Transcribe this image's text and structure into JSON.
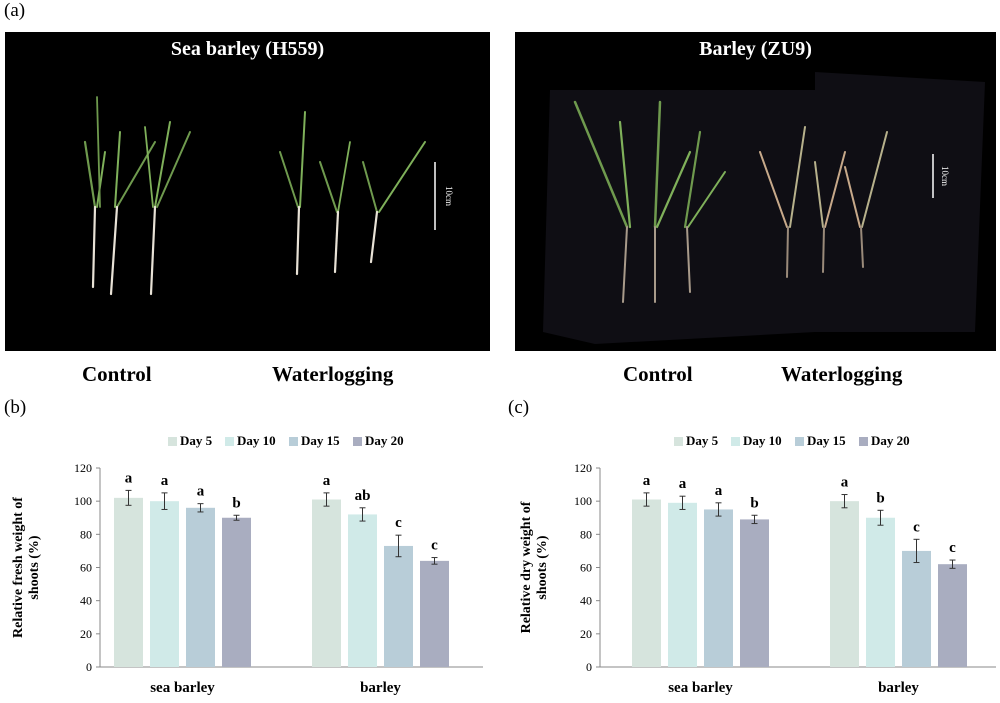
{
  "figure": {
    "panel_a": {
      "letter": "(a)",
      "photos": [
        {
          "title": "Sea barley (H559)",
          "scale": "10cm",
          "conditions": [
            "Control",
            "Waterlogging"
          ]
        },
        {
          "title": "Barley (ZU9)",
          "scale": "10cm",
          "conditions": [
            "Control",
            "Waterlogging"
          ]
        }
      ]
    }
  },
  "colors": {
    "Day 5": "#d6e4dd",
    "Day 10": "#d0eae8",
    "Day 15": "#b8cdd8",
    "Day 20": "#a9adc0"
  },
  "chart_data": [
    {
      "panel": "(b)",
      "type": "bar",
      "ylabel": "Relative fresh weight of shoots (%)",
      "categories": [
        "sea barley",
        "barley"
      ],
      "ylim": [
        0,
        120
      ],
      "yticks": [
        0,
        20,
        40,
        60,
        80,
        100,
        120
      ],
      "legend": "top",
      "series": [
        {
          "name": "Day 5",
          "values": [
            102,
            101
          ],
          "errors": [
            4.5,
            4
          ],
          "letters": [
            "a",
            "a"
          ]
        },
        {
          "name": "Day 10",
          "values": [
            100,
            92
          ],
          "errors": [
            5,
            4
          ],
          "letters": [
            "a",
            "ab"
          ]
        },
        {
          "name": "Day 15",
          "values": [
            96,
            73
          ],
          "errors": [
            2.5,
            6.5
          ],
          "letters": [
            "a",
            "c"
          ]
        },
        {
          "name": "Day 20",
          "values": [
            90,
            64
          ],
          "errors": [
            1.5,
            2
          ],
          "letters": [
            "b",
            "c"
          ]
        }
      ]
    },
    {
      "panel": "(c)",
      "type": "bar",
      "ylabel": "Relative dry weight of shoots (%)",
      "categories": [
        "sea barley",
        "barley"
      ],
      "ylim": [
        0,
        120
      ],
      "yticks": [
        0,
        20,
        40,
        60,
        80,
        100,
        120
      ],
      "legend": "top",
      "series": [
        {
          "name": "Day 5",
          "values": [
            101,
            100
          ],
          "errors": [
            4,
            4
          ],
          "letters": [
            "a",
            "a"
          ]
        },
        {
          "name": "Day 10",
          "values": [
            99,
            90
          ],
          "errors": [
            4,
            4.5
          ],
          "letters": [
            "a",
            "b"
          ]
        },
        {
          "name": "Day 15",
          "values": [
            95,
            70
          ],
          "errors": [
            4,
            7
          ],
          "letters": [
            "a",
            "c"
          ]
        },
        {
          "name": "Day 20",
          "values": [
            89,
            62
          ],
          "errors": [
            2.5,
            2.5
          ],
          "letters": [
            "b",
            "c"
          ]
        }
      ]
    }
  ]
}
